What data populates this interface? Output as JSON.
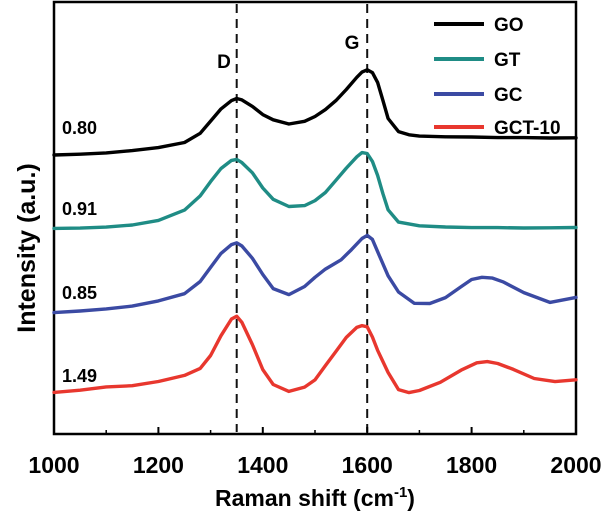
{
  "chart_data": {
    "type": "line",
    "xlabel": "Raman shift (cm",
    "xlabel_sup": "-1",
    "xlabel_close": ")",
    "ylabel": "Intensity (a.u.)",
    "xlim": [
      1000,
      2000
    ],
    "x_ticks": [
      1000,
      1200,
      1400,
      1600,
      1800,
      2000
    ],
    "y_ticks_shown": false,
    "grid": false,
    "legend_position": "top-right",
    "reference_lines": [
      {
        "label": "D",
        "x": 1350
      },
      {
        "label": "G",
        "x": 1600
      }
    ],
    "series": [
      {
        "name": "GO",
        "color": "#000000",
        "ratio_label": "0.80",
        "x": [
          1000,
          1050,
          1100,
          1150,
          1200,
          1250,
          1280,
          1300,
          1320,
          1340,
          1350,
          1360,
          1380,
          1400,
          1420,
          1450,
          1480,
          1500,
          1520,
          1540,
          1560,
          1580,
          1590,
          1600,
          1610,
          1620,
          1630,
          1640,
          1660,
          1680,
          1700,
          1750,
          1800,
          1850,
          1900,
          1950,
          2000
        ],
        "y": [
          0.0,
          0.1,
          0.25,
          0.5,
          0.8,
          1.3,
          2.2,
          3.4,
          4.6,
          5.4,
          5.6,
          5.45,
          4.8,
          4.0,
          3.5,
          3.1,
          3.4,
          3.9,
          4.6,
          5.5,
          6.6,
          7.8,
          8.3,
          8.5,
          8.2,
          7.2,
          5.4,
          3.6,
          2.3,
          2.0,
          1.9,
          1.85,
          1.85,
          1.8,
          1.8,
          1.75,
          1.75
        ]
      },
      {
        "name": "GT",
        "color": "#1f8c85",
        "ratio_label": "0.91",
        "x": [
          1000,
          1050,
          1100,
          1150,
          1200,
          1250,
          1280,
          1300,
          1320,
          1340,
          1350,
          1360,
          1380,
          1400,
          1420,
          1450,
          1480,
          1500,
          1520,
          1540,
          1560,
          1580,
          1590,
          1600,
          1610,
          1620,
          1630,
          1640,
          1660,
          1700,
          1750,
          1800,
          1850,
          1900,
          1950,
          2000
        ],
        "y": [
          0.0,
          0.05,
          0.15,
          0.35,
          0.8,
          1.8,
          3.2,
          4.6,
          5.9,
          6.7,
          6.8,
          6.5,
          5.5,
          4.0,
          2.9,
          2.2,
          2.3,
          2.8,
          3.6,
          4.8,
          6.0,
          7.1,
          7.5,
          7.4,
          6.6,
          5.2,
          3.4,
          1.8,
          0.6,
          0.25,
          0.15,
          0.1,
          0.1,
          0.05,
          0.05,
          0.05
        ]
      },
      {
        "name": "GC",
        "color": "#3b4aa3",
        "ratio_label": "0.85",
        "x": [
          1000,
          1050,
          1100,
          1150,
          1200,
          1250,
          1280,
          1300,
          1320,
          1340,
          1350,
          1360,
          1380,
          1400,
          1420,
          1450,
          1480,
          1500,
          1520,
          1550,
          1570,
          1590,
          1600,
          1610,
          1620,
          1640,
          1660,
          1690,
          1720,
          1750,
          1780,
          1800,
          1820,
          1840,
          1860,
          1900,
          1950,
          2000
        ],
        "y": [
          0.0,
          0.15,
          0.35,
          0.6,
          1.1,
          1.8,
          3.0,
          4.4,
          5.8,
          6.7,
          6.9,
          6.6,
          5.4,
          3.8,
          2.4,
          1.8,
          2.6,
          3.5,
          4.3,
          5.2,
          6.2,
          7.3,
          7.6,
          7.2,
          6.0,
          3.6,
          2.0,
          0.9,
          0.9,
          1.5,
          2.6,
          3.3,
          3.5,
          3.4,
          3.0,
          1.9,
          0.9,
          1.4
        ]
      },
      {
        "name": "GCT-10",
        "color": "#e8372e",
        "ratio_label": "1.49",
        "x": [
          1000,
          1050,
          1100,
          1150,
          1200,
          1250,
          1280,
          1300,
          1320,
          1340,
          1350,
          1360,
          1380,
          1400,
          1420,
          1450,
          1480,
          1500,
          1520,
          1540,
          1560,
          1580,
          1590,
          1600,
          1610,
          1620,
          1640,
          1660,
          1680,
          1700,
          1740,
          1780,
          1810,
          1830,
          1850,
          1880,
          1920,
          1960,
          2000
        ],
        "y": [
          0.0,
          0.2,
          0.5,
          0.6,
          1.0,
          1.6,
          2.3,
          3.6,
          5.6,
          7.3,
          7.6,
          7.0,
          4.8,
          2.3,
          0.8,
          0.1,
          0.5,
          1.2,
          2.6,
          4.0,
          5.4,
          6.4,
          6.6,
          6.5,
          5.5,
          4.2,
          2.0,
          0.3,
          0.0,
          0.2,
          1.0,
          2.2,
          2.9,
          3.0,
          2.8,
          2.2,
          1.3,
          1.0,
          1.2
        ]
      }
    ]
  }
}
